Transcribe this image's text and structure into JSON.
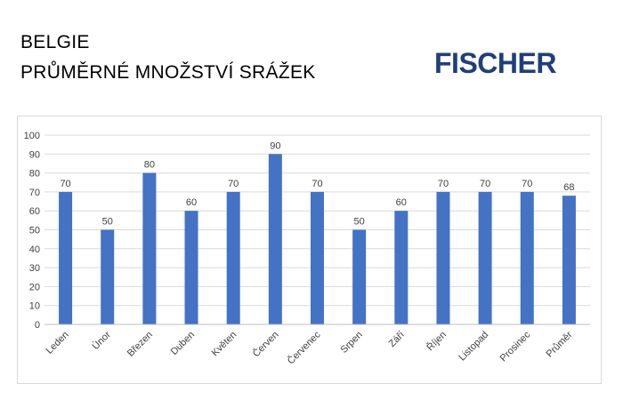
{
  "header": {
    "title_line1": "BELGIE",
    "title_line2": "PRŮMĚRNÉ MNOŽSTVÍ SRÁŽEK"
  },
  "logo": {
    "text": "FISCHER",
    "color": "#1f3f7a"
  },
  "chart_data": {
    "type": "bar",
    "categories": [
      "Leden",
      "Únor",
      "Březen",
      "Duben",
      "Květen",
      "Červen",
      "Červenec",
      "Srpen",
      "Září",
      "Říjen",
      "Listopad",
      "Prosinec",
      "Průměr"
    ],
    "values": [
      70,
      50,
      80,
      60,
      70,
      90,
      70,
      50,
      60,
      70,
      70,
      70,
      68
    ],
    "title": "",
    "xlabel": "",
    "ylabel": "",
    "ylim": [
      0,
      100
    ],
    "yticks": [
      0,
      10,
      20,
      30,
      40,
      50,
      60,
      70,
      80,
      90,
      100
    ],
    "grid": true,
    "legend": false,
    "bar_color": "#4472c4",
    "grid_color": "#d9d9d9",
    "label_color": "#404040"
  }
}
